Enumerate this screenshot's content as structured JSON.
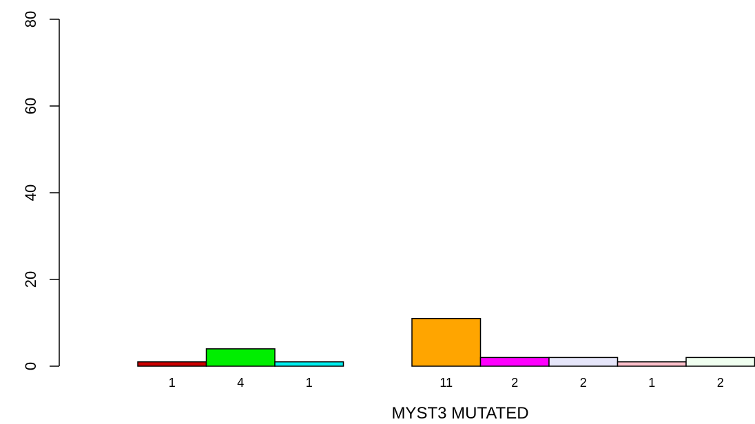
{
  "chart_data": {
    "type": "bar",
    "title": "",
    "xlabel": "MYST3 MUTATED",
    "ylabel": "",
    "ylim": [
      0,
      80
    ],
    "yticks": [
      0,
      20,
      40,
      60,
      80
    ],
    "grid": false,
    "legend": "none",
    "values": [
      1,
      4,
      1,
      0,
      11,
      2,
      2,
      1,
      2
    ],
    "value_labels": [
      "1",
      "4",
      "1",
      "",
      "11",
      "2",
      "2",
      "1",
      "2"
    ],
    "colors": [
      "#cc0000",
      "#00ee00",
      "#00eeee",
      "#ffffff",
      "#ffa500",
      "#ff00ff",
      "#e6e6fa",
      "#ffc0cb",
      "#f0fff0"
    ]
  }
}
